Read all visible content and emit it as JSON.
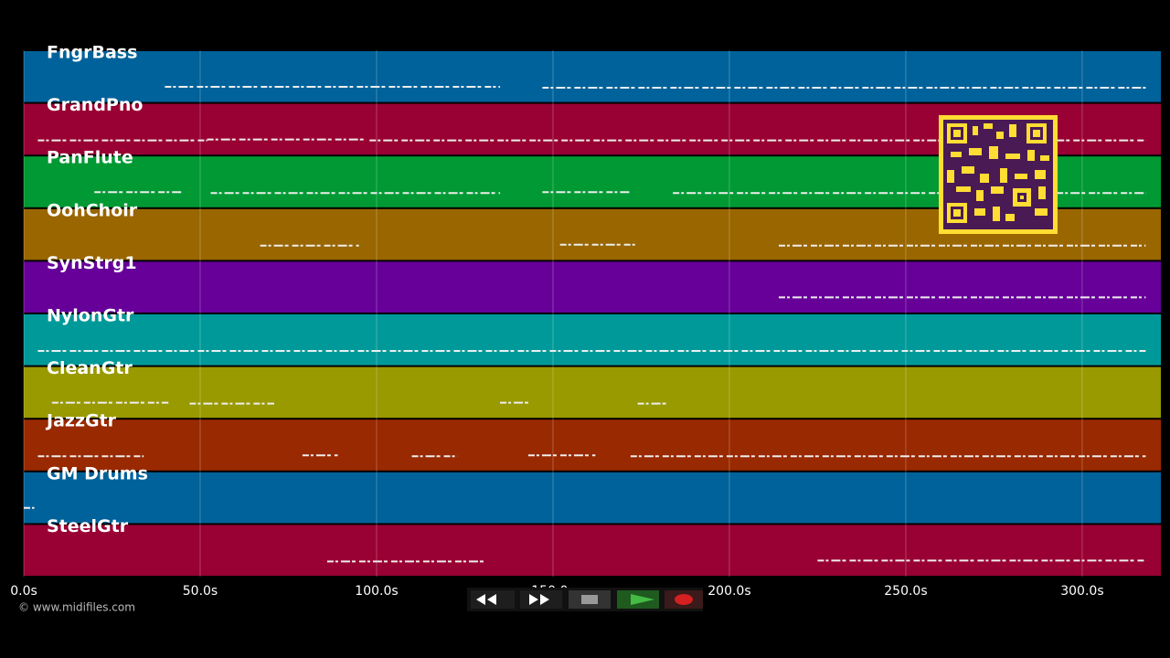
{
  "timeline": {
    "xlim": [
      0,
      322.3
    ],
    "ticks": [
      {
        "value": 0,
        "label": "0.0s"
      },
      {
        "value": 50,
        "label": "50.0s"
      },
      {
        "value": 100,
        "label": "100.0s"
      },
      {
        "value": 150,
        "label": "150.0s"
      },
      {
        "value": 200,
        "label": "200.0s"
      },
      {
        "value": 250,
        "label": "250.0s"
      },
      {
        "value": 300,
        "label": "300.0s"
      }
    ]
  },
  "tracks": [
    {
      "name": "FngrBass",
      "color": "#00629a",
      "note_spans": [
        [
          40,
          135
        ],
        [
          147,
          318
        ]
      ]
    },
    {
      "name": "GrandPno",
      "color": "#990033",
      "note_spans": [
        [
          4,
          52
        ],
        [
          52,
          97
        ],
        [
          98,
          318
        ]
      ]
    },
    {
      "name": "PanFlute",
      "color": "#009933",
      "note_spans": [
        [
          20,
          45
        ],
        [
          53,
          135
        ],
        [
          147,
          172
        ],
        [
          184,
          318
        ]
      ]
    },
    {
      "name": "OohChoir",
      "color": "#996600",
      "note_spans": [
        [
          67,
          95
        ],
        [
          152,
          174
        ],
        [
          214,
          318
        ]
      ]
    },
    {
      "name": "SynStrg1",
      "color": "#660099",
      "note_spans": [
        [
          214,
          318
        ]
      ]
    },
    {
      "name": "NylonGtr",
      "color": "#009999",
      "note_spans": [
        [
          4,
          318
        ]
      ]
    },
    {
      "name": "CleanGtr",
      "color": "#999900",
      "note_spans": [
        [
          8,
          41
        ],
        [
          47,
          71
        ],
        [
          135,
          143
        ],
        [
          174,
          183
        ]
      ]
    },
    {
      "name": "JazzGtr",
      "color": "#992900",
      "note_spans": [
        [
          4,
          34
        ],
        [
          79,
          89
        ],
        [
          110,
          123
        ],
        [
          143,
          162
        ],
        [
          172,
          318
        ]
      ]
    },
    {
      "name": "GM Drums",
      "color": "#00629a",
      "note_spans": [
        [
          0,
          3
        ]
      ]
    },
    {
      "name": "SteelGtr",
      "color": "#990033",
      "note_spans": [
        [
          86,
          131
        ],
        [
          225,
          318
        ]
      ]
    }
  ],
  "credit": "© www.midifiles.com"
}
